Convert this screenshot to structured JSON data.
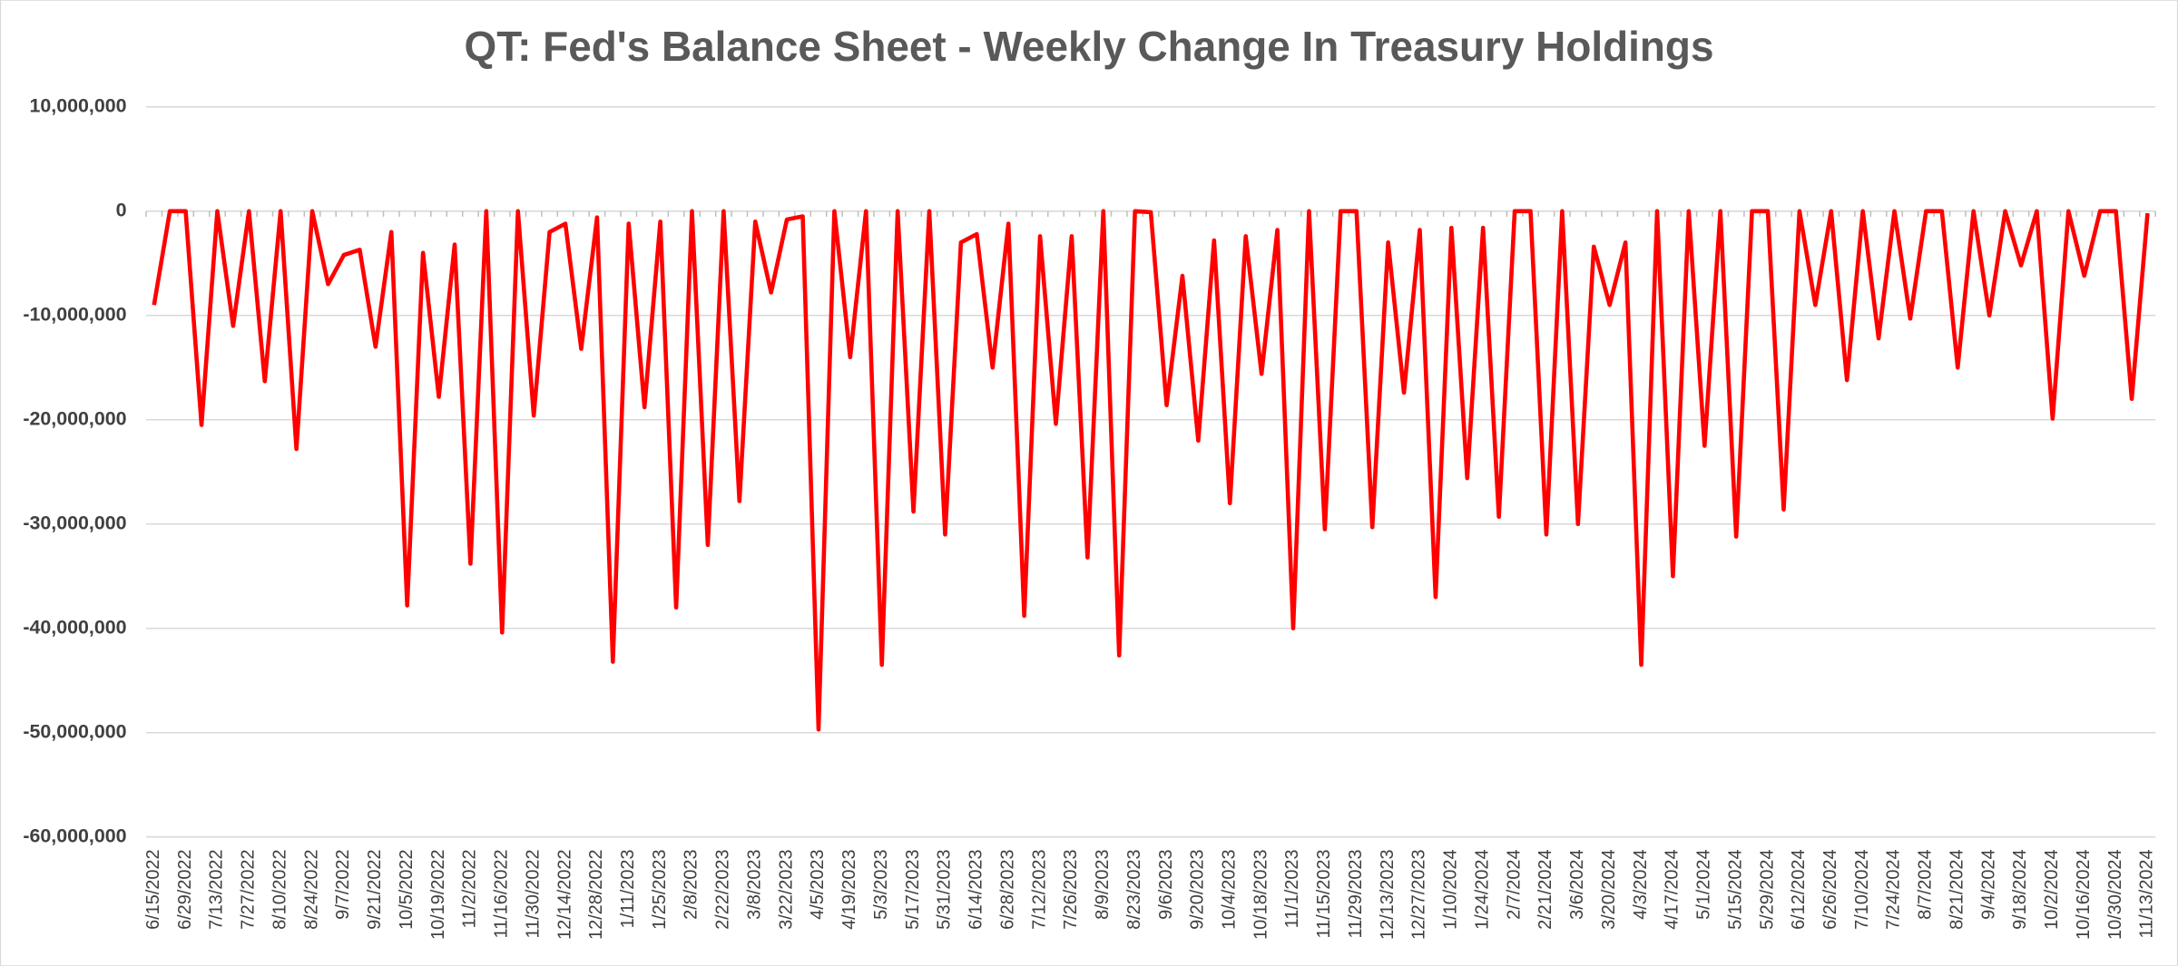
{
  "chart_data": {
    "type": "line",
    "title": "QT: Fed's Balance Sheet - Weekly Change In Treasury Holdings",
    "categories": [
      "6/15/2022",
      null,
      "6/29/2022",
      null,
      "7/13/2022",
      null,
      "7/27/2022",
      null,
      "8/10/2022",
      null,
      "8/24/2022",
      null,
      "9/7/2022",
      null,
      "9/21/2022",
      null,
      "10/5/2022",
      null,
      "10/19/2022",
      null,
      "11/2/2022",
      null,
      "11/16/2022",
      null,
      "11/30/2022",
      null,
      "12/14/2022",
      null,
      "12/28/2022",
      null,
      "1/11/2023",
      null,
      "1/25/2023",
      null,
      "2/8/2023",
      null,
      "2/22/2023",
      null,
      "3/8/2023",
      null,
      "3/22/2023",
      null,
      "4/5/2023",
      null,
      "4/19/2023",
      null,
      "5/3/2023",
      null,
      "5/17/2023",
      null,
      "5/31/2023",
      null,
      "6/14/2023",
      null,
      "6/28/2023",
      null,
      "7/12/2023",
      null,
      "7/26/2023",
      null,
      "8/9/2023",
      null,
      "8/23/2023",
      null,
      "9/6/2023",
      null,
      "9/20/2023",
      null,
      "10/4/2023",
      null,
      "10/18/2023",
      null,
      "11/1/2023",
      null,
      "11/15/2023",
      null,
      "11/29/2023",
      null,
      "12/13/2023",
      null,
      "12/27/2023",
      null,
      "1/10/2024",
      null,
      "1/24/2024",
      null,
      "2/7/2024",
      null,
      "2/21/2024",
      null,
      "3/6/2024",
      null,
      "3/20/2024",
      null,
      "4/3/2024",
      null,
      "4/17/2024",
      null,
      "5/1/2024",
      null,
      "5/15/2024",
      null,
      "5/29/2024",
      null,
      "6/12/2024",
      null,
      "6/26/2024",
      null,
      "7/10/2024",
      null,
      "7/24/2024",
      null,
      "8/7/2024",
      null,
      "8/21/2024",
      null,
      "9/4/2024",
      null,
      "9/18/2024",
      null,
      "10/2/2024",
      null,
      "10/16/2024",
      null,
      "10/30/2024",
      null,
      "11/13/2024"
    ],
    "values": [
      -9000000,
      0,
      0,
      -20500000,
      0,
      -11000000,
      0,
      -16300000,
      0,
      -22800000,
      0,
      -7000000,
      -4200000,
      -3700000,
      -13000000,
      -2000000,
      -37800000,
      -4000000,
      -17800000,
      -3200000,
      -33800000,
      0,
      -40400000,
      0,
      -19600000,
      -2000000,
      -1200000,
      -13200000,
      -600000,
      -43200000,
      -1200000,
      -18800000,
      -1000000,
      -38000000,
      0,
      -32000000,
      0,
      -27800000,
      -1000000,
      -7800000,
      -800000,
      -500000,
      -49700000,
      0,
      -14000000,
      0,
      -43500000,
      0,
      -28800000,
      0,
      -31000000,
      -3000000,
      -2200000,
      -15000000,
      -1200000,
      -38800000,
      -2400000,
      -20400000,
      -2400000,
      -33200000,
      0,
      -42600000,
      0,
      -100000,
      -18600000,
      -6200000,
      -22000000,
      -2800000,
      -28000000,
      -2400000,
      -15600000,
      -1800000,
      -40000000,
      0,
      -30500000,
      0,
      0,
      -30300000,
      -3000000,
      -17400000,
      -1800000,
      -37000000,
      -1600000,
      -25600000,
      -1600000,
      -29300000,
      0,
      0,
      -31000000,
      0,
      -30000000,
      -3400000,
      -9000000,
      -3000000,
      -43500000,
      0,
      -35000000,
      0,
      -22500000,
      0,
      -31200000,
      0,
      0,
      -28600000,
      0,
      -9000000,
      0,
      -16200000,
      0,
      -12200000,
      0,
      -10300000,
      0,
      0,
      -15000000,
      0,
      -10000000,
      0,
      -5200000,
      0,
      -19900000,
      0,
      -6200000,
      0,
      0,
      -18000000,
      -200000
    ],
    "color": "#ff0000",
    "ylim": [
      -60000000,
      10000000
    ],
    "yticks": [
      {
        "value": -60000000,
        "label": "-60,000,000"
      },
      {
        "value": -50000000,
        "label": "-50,000,000"
      },
      {
        "value": -40000000,
        "label": "-40,000,000"
      },
      {
        "value": -30000000,
        "label": "-30,000,000"
      },
      {
        "value": -20000000,
        "label": "-20,000,000"
      },
      {
        "value": -10000000,
        "label": "-10,000,000"
      },
      0,
      {
        "value": 10000000,
        "label": "10,000,000"
      }
    ],
    "grid": true
  }
}
